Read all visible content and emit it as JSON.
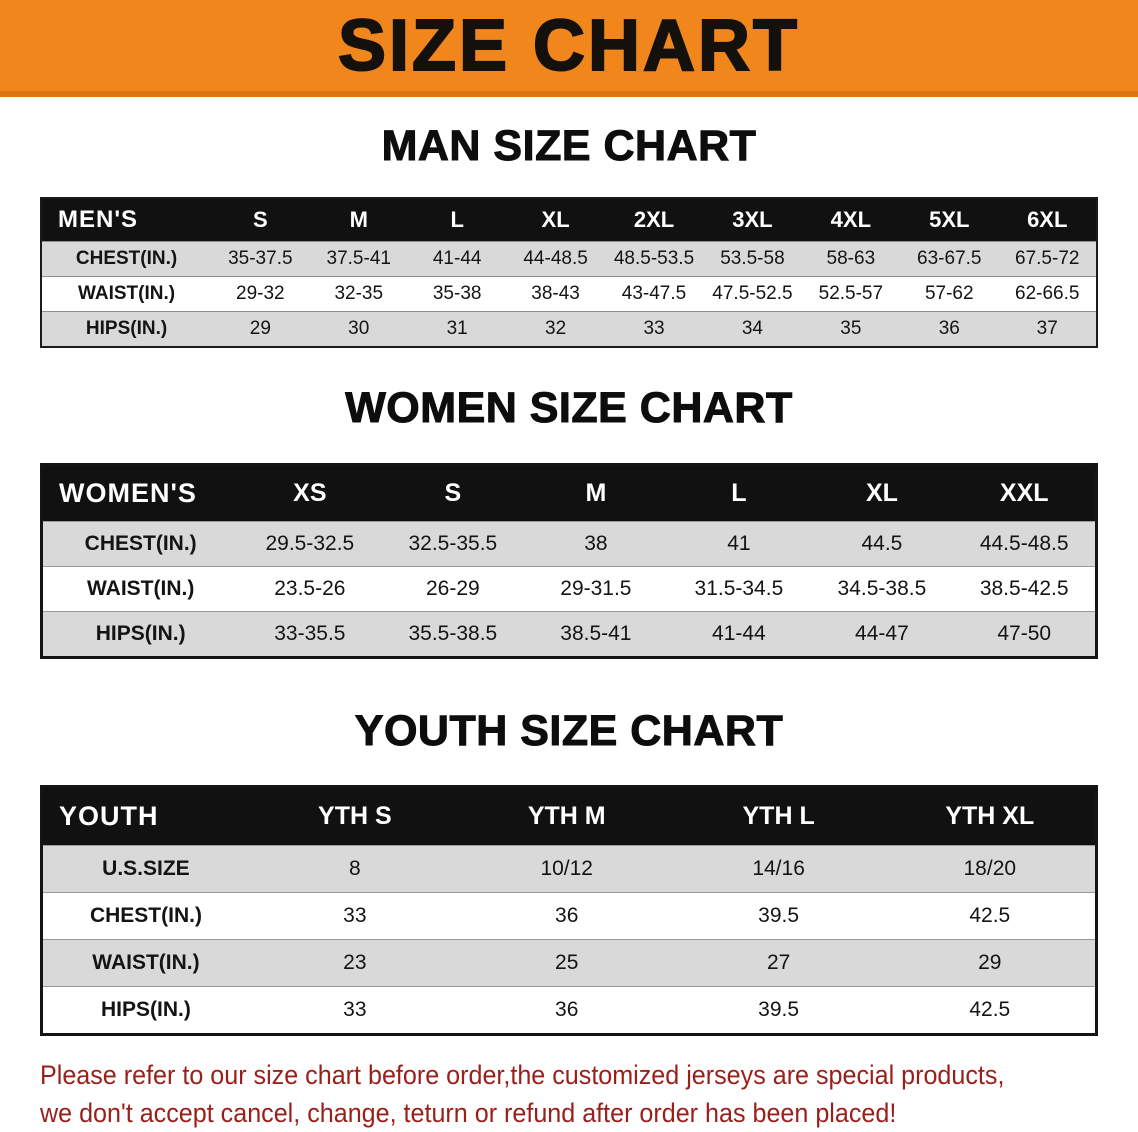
{
  "banner": {
    "title": "SIZE CHART"
  },
  "colors": {
    "banner_bg": "#f1861c",
    "banner_edge": "#de7610",
    "header_bg": "#111111",
    "stripe": "#d9d9d9",
    "footer_text": "#9a1f1a"
  },
  "sections": [
    {
      "heading": "MAN SIZE CHART",
      "table": {
        "title_cell": "MEN'S",
        "columns": [
          "S",
          "M",
          "L",
          "XL",
          "2XL",
          "3XL",
          "4XL",
          "5XL",
          "6XL"
        ],
        "rows": [
          {
            "label": "CHEST(IN.)",
            "values": [
              "35-37.5",
              "37.5-41",
              "41-44",
              "44-48.5",
              "48.5-53.5",
              "53.5-58",
              "58-63",
              "63-67.5",
              "67.5-72"
            ]
          },
          {
            "label": "WAIST(IN.)",
            "values": [
              "29-32",
              "32-35",
              "35-38",
              "38-43",
              "43-47.5",
              "47.5-52.5",
              "52.5-57",
              "57-62",
              "62-66.5"
            ]
          },
          {
            "label": "HIPS(IN.)",
            "values": [
              "29",
              "30",
              "31",
              "32",
              "33",
              "34",
              "35",
              "36",
              "37"
            ]
          }
        ]
      }
    },
    {
      "heading": "WOMEN SIZE CHART",
      "table": {
        "title_cell": "WOMEN'S",
        "columns": [
          "XS",
          "S",
          "M",
          "L",
          "XL",
          "XXL"
        ],
        "rows": [
          {
            "label": "CHEST(IN.)",
            "values": [
              "29.5-32.5",
              "32.5-35.5",
              "38",
              "41",
              "44.5",
              "44.5-48.5"
            ]
          },
          {
            "label": "WAIST(IN.)",
            "values": [
              "23.5-26",
              "26-29",
              "29-31.5",
              "31.5-34.5",
              "34.5-38.5",
              "38.5-42.5"
            ]
          },
          {
            "label": "HIPS(IN.)",
            "values": [
              "33-35.5",
              "35.5-38.5",
              "38.5-41",
              "41-44",
              "44-47",
              "47-50"
            ]
          }
        ]
      }
    },
    {
      "heading": "YOUTH SIZE CHART",
      "table": {
        "title_cell": "YOUTH",
        "columns": [
          "YTH S",
          "YTH M",
          "YTH L",
          "YTH XL"
        ],
        "rows": [
          {
            "label": "U.S.SIZE",
            "values": [
              "8",
              "10/12",
              "14/16",
              "18/20"
            ]
          },
          {
            "label": "CHEST(IN.)",
            "values": [
              "33",
              "36",
              "39.5",
              "42.5"
            ]
          },
          {
            "label": "WAIST(IN.)",
            "values": [
              "23",
              "25",
              "27",
              "29"
            ]
          },
          {
            "label": "HIPS(IN.)",
            "values": [
              "33",
              "36",
              "39.5",
              "42.5"
            ]
          }
        ]
      }
    }
  ],
  "footer": {
    "line1": "Please refer to our size chart before order,the customized jerseys are special products,",
    "line2": "we don't accept cancel, change, teturn or refund after order has been placed!"
  }
}
